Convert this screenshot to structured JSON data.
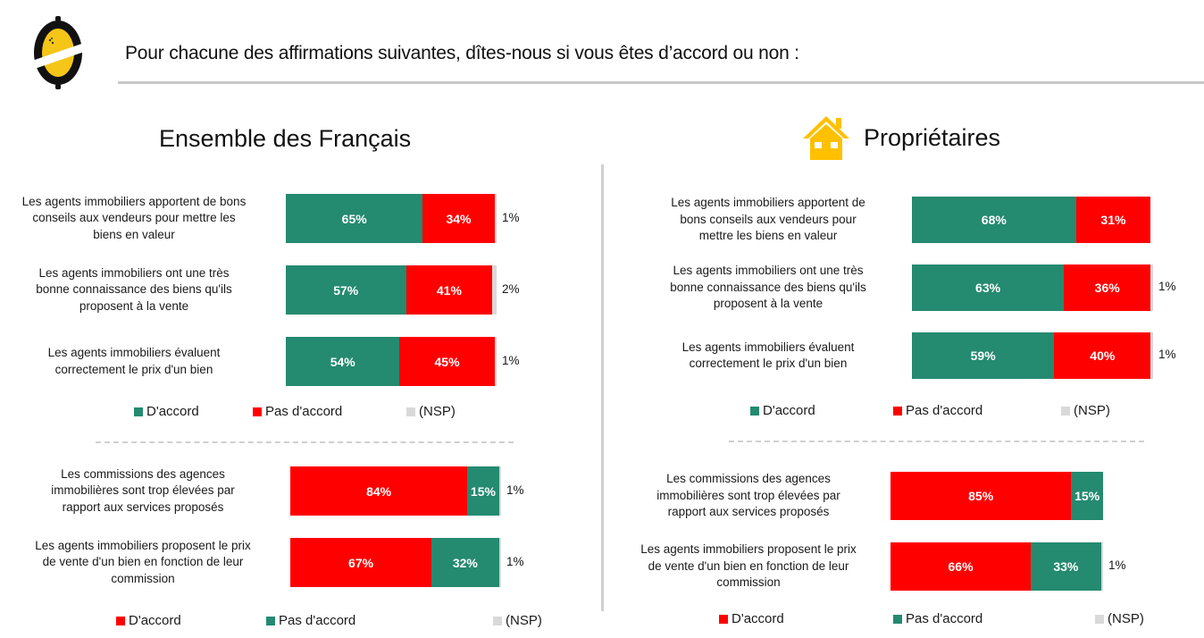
{
  "header": {
    "title": "Pour chacune des affirmations suivantes, dîtes-nous si vous êtes d’accord ou non :",
    "logo_icon": "brand-logo-icon"
  },
  "colors": {
    "green": "#248a70",
    "red": "#ff0000",
    "nsp": "#d9d9d9",
    "house": "#ffc000"
  },
  "chart_data": [
    {
      "type": "bar",
      "orientation": "horizontal-stacked-100",
      "panel": "Ensemble des Français",
      "group": "top",
      "title": "Ensemble des Français",
      "categories": [
        "Les agents immobiliers apportent de bons conseils aux vendeurs pour mettre les biens en valeur",
        "Les agents immobiliers ont une très bonne connaissance des biens qu'ils proposent à la vente",
        "Les agents immobiliers évaluent correctement le prix d'un bien"
      ],
      "series": [
        {
          "name": "D'accord",
          "color": "#248a70",
          "values": [
            65,
            57,
            54
          ],
          "labels": [
            "65%",
            "57%",
            "54%"
          ]
        },
        {
          "name": "Pas d'accord",
          "color": "#ff0000",
          "values": [
            34,
            41,
            45
          ],
          "labels": [
            "34%",
            "41%",
            "45%"
          ]
        },
        {
          "name": "(NSP)",
          "color": "#d9d9d9",
          "values": [
            1,
            2,
            1
          ],
          "labels": [
            "1%",
            "2%",
            "1%"
          ]
        }
      ],
      "legend": [
        "D'accord",
        "Pas d'accord",
        "(NSP)"
      ],
      "xlim": [
        0,
        100
      ]
    },
    {
      "type": "bar",
      "orientation": "horizontal-stacked-100",
      "panel": "Ensemble des Français",
      "group": "bottom",
      "categories": [
        "Les commissions des agences immobilières sont trop élevées par rapport aux services proposés",
        "Les agents immobiliers proposent le prix de vente d'un bien en fonction de leur commission"
      ],
      "series": [
        {
          "name": "D'accord",
          "color": "#ff0000",
          "values": [
            84,
            67
          ],
          "labels": [
            "84%",
            "67%"
          ]
        },
        {
          "name": "Pas d'accord",
          "color": "#248a70",
          "values": [
            15,
            32
          ],
          "labels": [
            "15%",
            "32%"
          ]
        },
        {
          "name": "(NSP)",
          "color": "#d9d9d9",
          "values": [
            1,
            1
          ],
          "labels": [
            "1%",
            "1%"
          ]
        }
      ],
      "legend": [
        "D'accord",
        "Pas d'accord",
        "(NSP)"
      ],
      "xlim": [
        0,
        100
      ]
    },
    {
      "type": "bar",
      "orientation": "horizontal-stacked-100",
      "panel": "Propriétaires",
      "group": "top",
      "title": "Propriétaires",
      "categories": [
        "Les agents immobiliers apportent de bons conseils aux vendeurs pour mettre les biens en valeur",
        "Les agents immobiliers ont une très bonne connaissance des biens qu'ils proposent à la vente",
        "Les agents immobiliers évaluent correctement le prix d'un bien"
      ],
      "series": [
        {
          "name": "D'accord",
          "color": "#248a70",
          "values": [
            68,
            63,
            59
          ],
          "labels": [
            "68%",
            "63%",
            "59%"
          ]
        },
        {
          "name": "Pas d'accord",
          "color": "#ff0000",
          "values": [
            31,
            36,
            40
          ],
          "labels": [
            "31%",
            "36%",
            "40%"
          ]
        },
        {
          "name": "(NSP)",
          "color": "#d9d9d9",
          "values": [
            0,
            1,
            1
          ],
          "labels": [
            "",
            "1%",
            "1%"
          ]
        }
      ],
      "legend": [
        "D'accord",
        "Pas d'accord",
        "(NSP)"
      ],
      "xlim": [
        0,
        100
      ]
    },
    {
      "type": "bar",
      "orientation": "horizontal-stacked-100",
      "panel": "Propriétaires",
      "group": "bottom",
      "categories": [
        "Les commissions des agences immobilières sont trop élevées par rapport aux services proposés",
        "Les agents immobiliers proposent le prix de vente d'un bien en fonction de leur commission"
      ],
      "series": [
        {
          "name": "D'accord",
          "color": "#ff0000",
          "values": [
            85,
            66
          ],
          "labels": [
            "85%",
            "66%"
          ]
        },
        {
          "name": "Pas d'accord",
          "color": "#248a70",
          "values": [
            15,
            33
          ],
          "labels": [
            "15%",
            "33%"
          ]
        },
        {
          "name": "(NSP)",
          "color": "#d9d9d9",
          "values": [
            0,
            1
          ],
          "labels": [
            "",
            "1%"
          ]
        }
      ],
      "legend": [
        "D'accord",
        "Pas d'accord",
        "(NSP)"
      ],
      "xlim": [
        0,
        100
      ]
    }
  ],
  "panels": {
    "left": {
      "title": "Ensemble des Français"
    },
    "right": {
      "title": "Propriétaires",
      "icon": "house-icon"
    }
  },
  "statements": {
    "left_top": [
      "Les agents immobiliers apportent de bons\nconseils aux vendeurs pour mettre les\nbiens en valeur",
      "Les agents immobiliers ont une très\nbonne connaissance des biens qu'ils\nproposent à la vente",
      "Les agents immobiliers évaluent\ncorrectement le prix d'un bien"
    ],
    "left_bottom": [
      "Les commissions des agences\nimmobilières sont trop élevées par\nrapport aux services proposés",
      "Les agents immobiliers proposent le prix\nde vente d'un bien en fonction de leur\ncommission"
    ],
    "right_top": [
      "Les agents immobiliers apportent de\nbons conseils aux vendeurs pour\nmettre les biens en valeur",
      "Les agents immobiliers ont une très\nbonne connaissance des biens qu'ils\nproposent à la vente",
      "Les agents immobiliers évaluent\ncorrectement le prix d'un bien"
    ],
    "right_bottom": [
      "Les commissions des agences\nimmobilières sont trop élevées par\nrapport aux services proposés",
      "Les agents immobiliers proposent le prix\nde vente d'un bien en fonction de leur\ncommission"
    ]
  }
}
